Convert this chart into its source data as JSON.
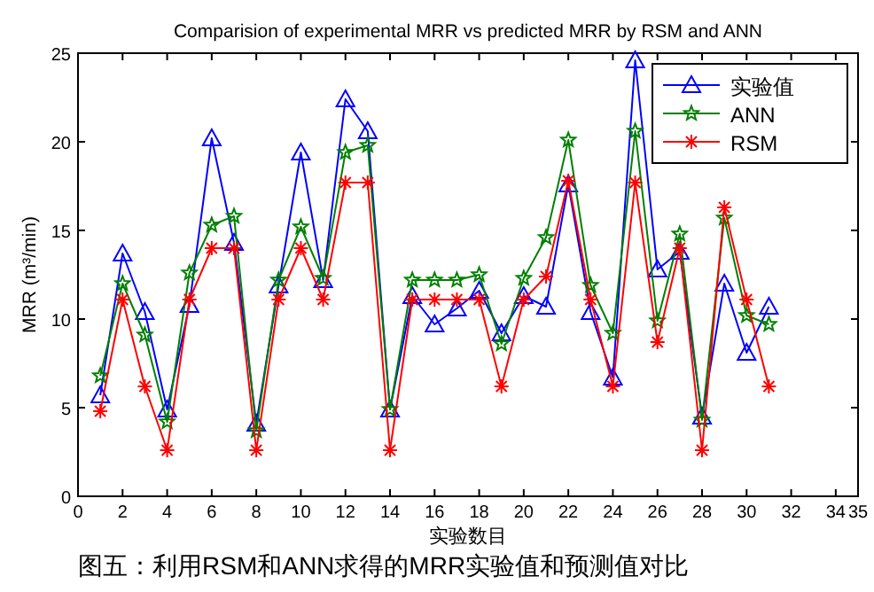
{
  "chart_data": {
    "type": "line",
    "title": "Comparision of experimental MRR vs predicted MRR by RSM and ANN",
    "xlabel": "实验数目",
    "ylabel": "MRR (m³/min)",
    "annotations": [
      "图五：利用RSM和ANN求得的MRR实验值和预测值对比"
    ],
    "x": [
      1,
      2,
      3,
      4,
      5,
      6,
      7,
      8,
      9,
      10,
      11,
      12,
      13,
      14,
      15,
      16,
      17,
      18,
      19,
      20,
      21,
      22,
      23,
      24,
      25,
      26,
      27,
      28,
      29,
      30,
      31
    ],
    "series": [
      {
        "name": "实验值",
        "color": "#0000ff",
        "marker": "triangle",
        "values": [
          5.7,
          13.7,
          10.4,
          4.9,
          10.8,
          20.2,
          14.3,
          4.1,
          11.9,
          19.4,
          12.2,
          22.4,
          20.6,
          4.9,
          11.3,
          9.7,
          10.6,
          11.6,
          9.2,
          11.3,
          10.7,
          17.6,
          10.4,
          6.7,
          24.6,
          12.8,
          13.8,
          4.5,
          12.0,
          8.1,
          10.7
        ]
      },
      {
        "name": "ANN",
        "color": "#008000",
        "marker": "star",
        "values": [
          6.8,
          12.0,
          9.1,
          4.2,
          12.6,
          15.3,
          15.8,
          3.7,
          12.2,
          15.2,
          12.3,
          19.4,
          19.8,
          4.9,
          12.2,
          12.2,
          12.2,
          12.5,
          8.6,
          12.3,
          14.6,
          20.1,
          11.9,
          9.2,
          20.6,
          9.9,
          14.8,
          4.3,
          15.7,
          10.2,
          9.7
        ]
      },
      {
        "name": "RSM",
        "color": "#ff0000",
        "marker": "cross",
        "values": [
          4.8,
          11.1,
          6.2,
          2.6,
          11.1,
          14.0,
          14.0,
          2.6,
          11.1,
          14.0,
          11.1,
          17.7,
          17.7,
          2.6,
          11.1,
          11.1,
          11.1,
          11.1,
          6.2,
          11.1,
          12.4,
          17.8,
          11.1,
          6.2,
          17.7,
          8.7,
          14.0,
          2.6,
          16.3,
          11.1,
          6.2
        ]
      }
    ],
    "xlim": [
      0,
      35
    ],
    "xticks": [
      0,
      2,
      4,
      6,
      8,
      10,
      12,
      14,
      16,
      18,
      20,
      22,
      24,
      26,
      28,
      30,
      32,
      34,
      35
    ],
    "ylim": [
      0,
      25
    ],
    "yticks": [
      0,
      5,
      10,
      15,
      20,
      25
    ],
    "grid": false,
    "legend": "top right",
    "line_style": "solid"
  }
}
